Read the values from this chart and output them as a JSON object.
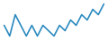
{
  "values": [
    5,
    3,
    7,
    5,
    3,
    5,
    3,
    5,
    4,
    3,
    5,
    4,
    6,
    5,
    7,
    6,
    8,
    7,
    9
  ],
  "line_color": "#2b8abf",
  "background_color": "#ffffff",
  "linewidth": 1.2
}
